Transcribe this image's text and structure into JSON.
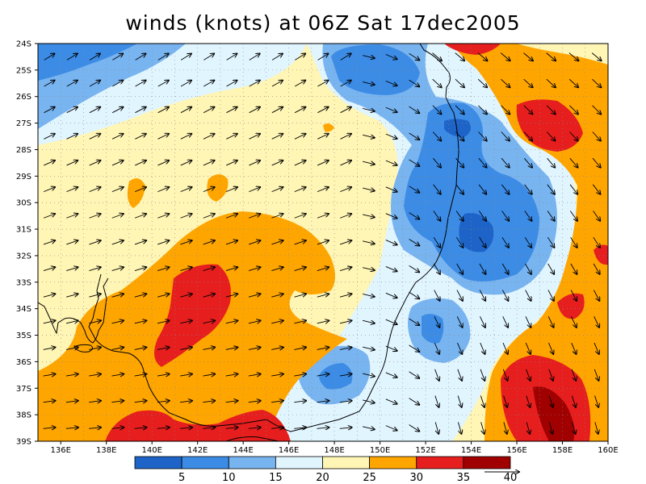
{
  "title": "winds (knots) at 06Z Sat 17dec2005",
  "map": {
    "lat_labels": [
      "24S",
      "25S",
      "26S",
      "27S",
      "28S",
      "29S",
      "30S",
      "31S",
      "32S",
      "33S",
      "34S",
      "35S",
      "36S",
      "37S",
      "38S",
      "39S"
    ],
    "lon_labels": [
      "136E",
      "138E",
      "140E",
      "142E",
      "144E",
      "146E",
      "148E",
      "150E",
      "152E",
      "154E",
      "156E",
      "158E",
      "160E"
    ],
    "lat_range": [
      -39,
      -24
    ],
    "lon_range": [
      135,
      160
    ],
    "grid": true,
    "field": "wind speed (knots)"
  },
  "colorbar": {
    "levels": [
      "5",
      "10",
      "15",
      "20",
      "25",
      "30",
      "35",
      "40"
    ],
    "colors": [
      "#1e64c8",
      "#3c8ce6",
      "#78b4f0",
      "#e1f5ff",
      "#fff5b4",
      "#ffa500",
      "#e61e1e",
      "#a00000"
    ],
    "reference_vector_label": "40"
  },
  "colors": {
    "very_weak": "#1e64c8",
    "weak": "#3c8ce6",
    "light": "#78b4f0",
    "calm": "#e1f5ff",
    "moderate": "#fff5b4",
    "fresh": "#ffa500",
    "strong": "#e61e1e",
    "very_strong": "#a00000",
    "coast": "#000000"
  }
}
